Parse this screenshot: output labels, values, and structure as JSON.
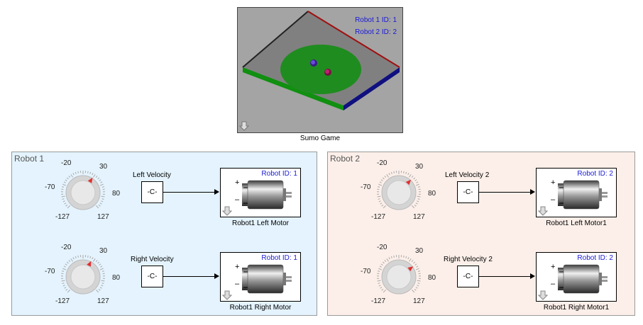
{
  "scene": {
    "label": "Sumo Game",
    "robot1_id_text": "Robot 1 ID: 1",
    "robot2_id_text": "Robot 2 ID: 2",
    "colors": {
      "background": "#a4a4a4",
      "arena": "#808080",
      "ring": "#1f8c1f",
      "edge_red": "#a01010",
      "edge_black": "#222222",
      "edge_green": "#108f10",
      "edge_blue": "#101080"
    }
  },
  "areas": [
    {
      "title": "Robot 1",
      "color": "#e4f3fd",
      "rows": [
        {
          "knob": {
            "labels": {
              "min": "-127",
              "low": "-70",
              "mid_low": "-20",
              "mid_high": "30",
              "high": "80",
              "max": "127"
            },
            "value_fraction": 0.62
          },
          "signal_name": "Left Velocity",
          "constant_label": "-C-",
          "motor": {
            "id_text": "Robot ID: 1",
            "caption": "Robot1 Left Motor",
            "plus": "+",
            "minus": "–"
          }
        },
        {
          "knob": {
            "labels": {
              "min": "-127",
              "low": "-70",
              "mid_low": "-20",
              "mid_high": "30",
              "high": "80",
              "max": "127"
            },
            "value_fraction": 0.6
          },
          "signal_name": "Right Velocity",
          "constant_label": "-C-",
          "motor": {
            "id_text": "Robot ID: 1",
            "caption": "Robot1 Right Motor",
            "plus": "+",
            "minus": "–"
          }
        }
      ]
    },
    {
      "title": "Robot 2",
      "color": "#fcefe9",
      "rows": [
        {
          "knob": {
            "labels": {
              "min": "-127",
              "low": "-70",
              "mid_low": "-20",
              "mid_high": "30",
              "high": "80",
              "max": "127"
            },
            "value_fraction": 0.66
          },
          "signal_name": "Left Velocity 2",
          "constant_label": "-C-",
          "motor": {
            "id_text": "Robot ID: 2",
            "caption": "Robot1 Left Motor1",
            "plus": "+",
            "minus": "–"
          }
        },
        {
          "knob": {
            "labels": {
              "min": "-127",
              "low": "-70",
              "mid_low": "-20",
              "mid_high": "30",
              "high": "80",
              "max": "127"
            },
            "value_fraction": 0.7
          },
          "signal_name": "Right Velocity 2",
          "constant_label": "-C-",
          "motor": {
            "id_text": "Robot ID: 2",
            "caption": "Robot1 Right Motor1",
            "plus": "+",
            "minus": "–"
          }
        }
      ]
    }
  ]
}
